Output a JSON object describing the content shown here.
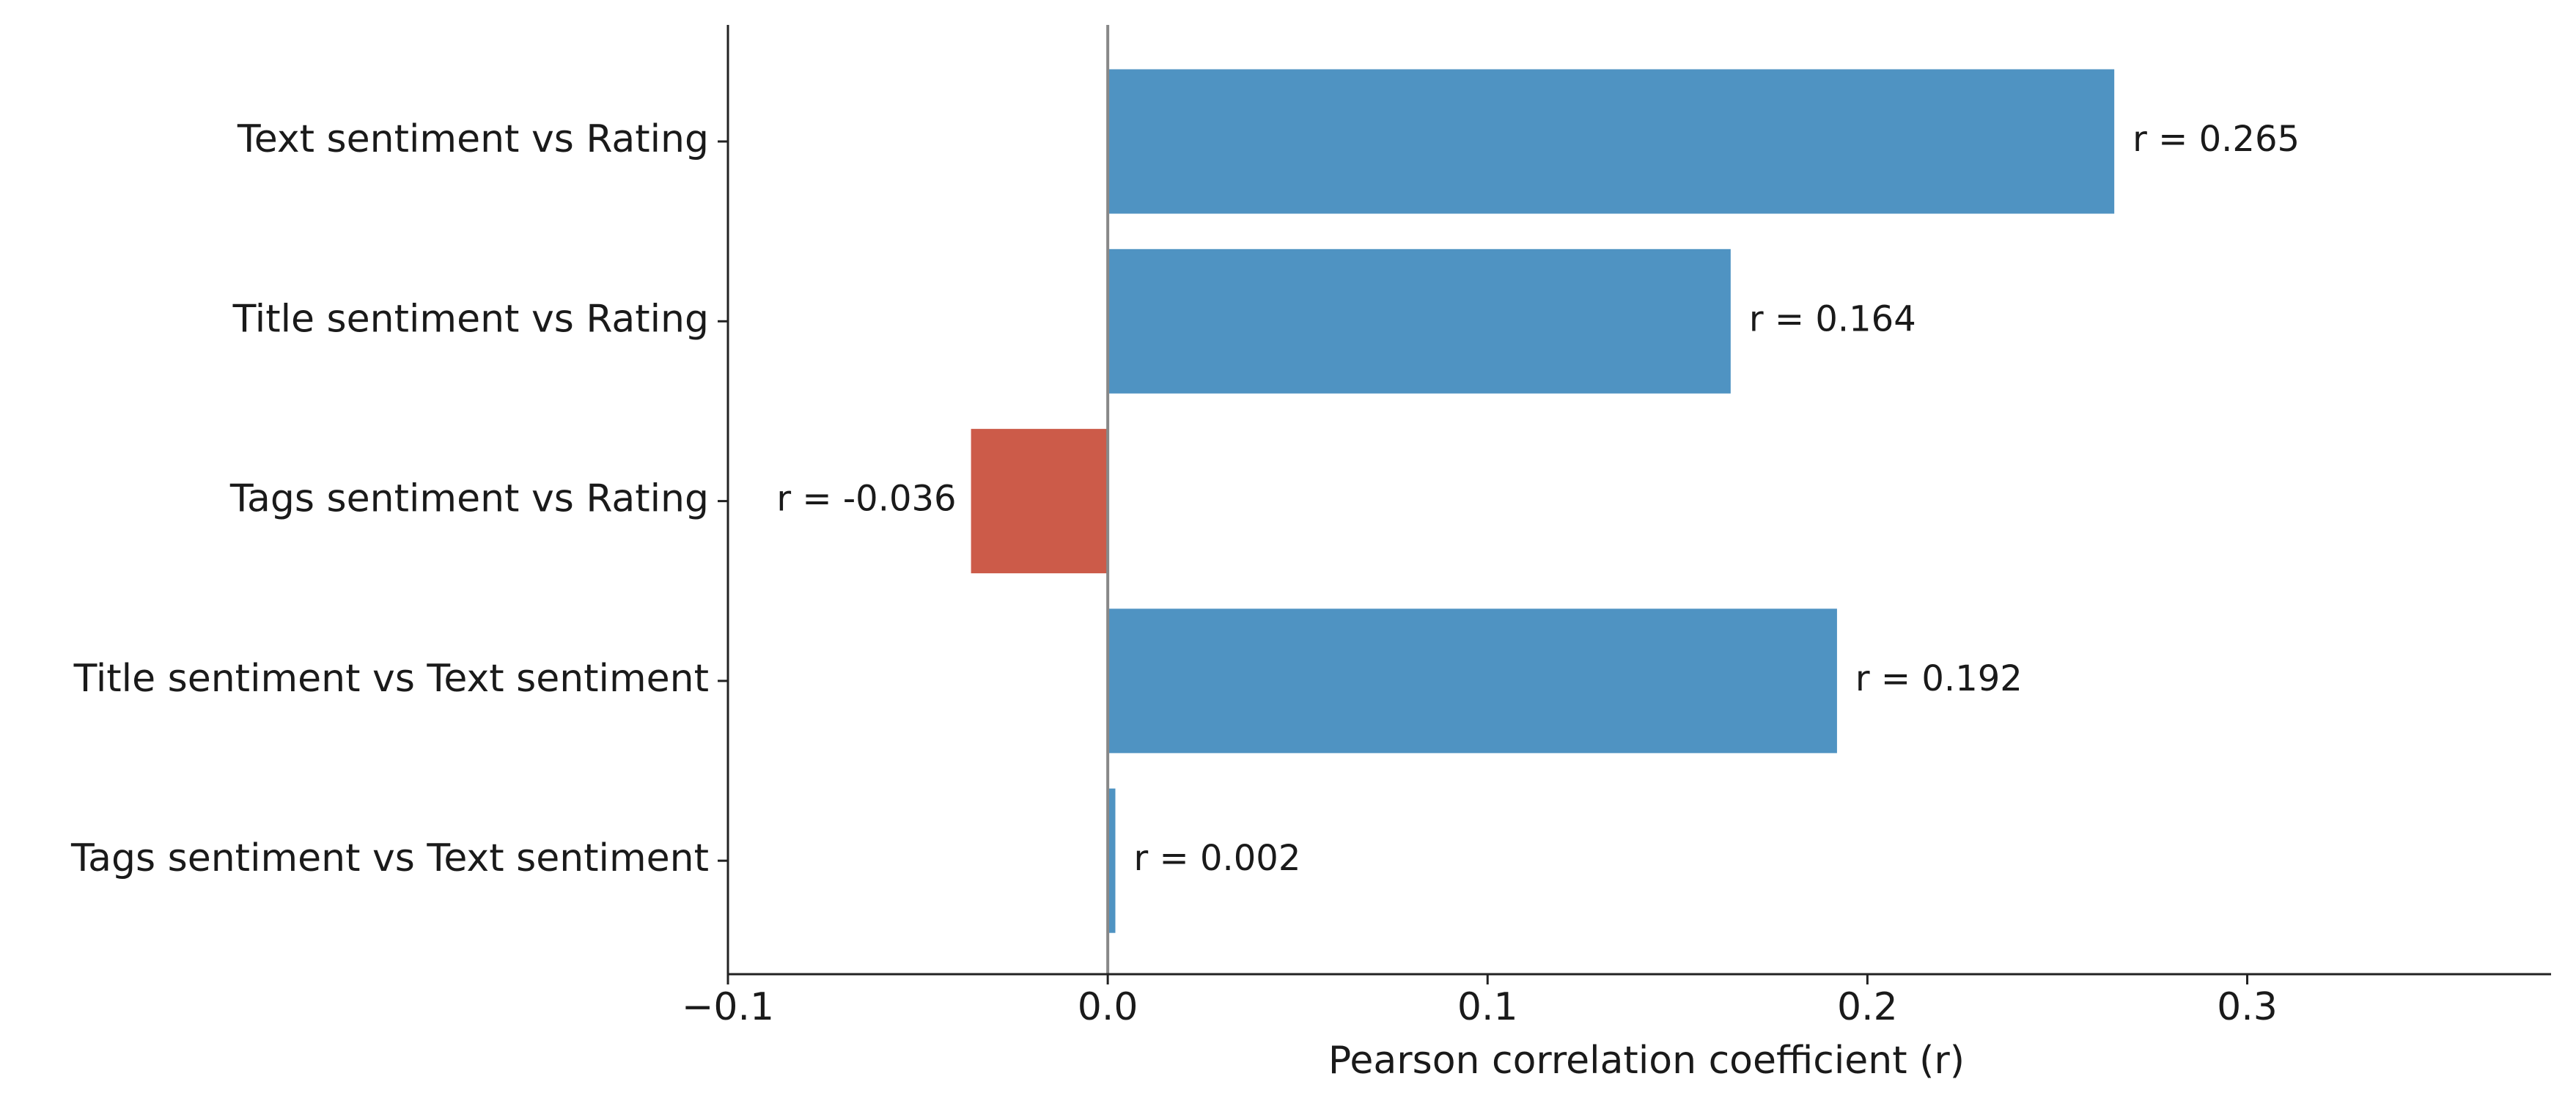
{
  "chart_data": {
    "type": "barh",
    "categories": [
      "Text sentiment vs Rating",
      "Title sentiment vs Rating",
      "Tags sentiment vs Rating",
      "Title sentiment vs Text sentiment",
      "Tags sentiment vs Text sentiment"
    ],
    "values": [
      0.265,
      0.164,
      -0.036,
      0.192,
      0.002
    ],
    "value_labels": [
      "r = 0.265",
      "r = 0.164",
      "r = -0.036",
      "r = 0.192",
      "r = 0.002"
    ],
    "colors": [
      "#4f93c2",
      "#4f93c2",
      "#cc5b49",
      "#4f93c2",
      "#4f93c2"
    ],
    "xlabel": "Pearson correlation coefficient (r)",
    "xlim": [
      -0.1,
      0.38
    ],
    "xticks": [
      {
        "value": -0.1,
        "label": "−0.1"
      },
      {
        "value": 0,
        "label": "0.0"
      },
      0.1,
      0.2,
      0.3
    ],
    "grid": false
  }
}
